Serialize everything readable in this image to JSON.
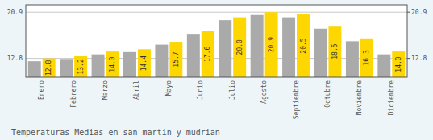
{
  "chart_data": {
    "type": "bar",
    "title": "Temperaturas Medias en san martin y mudrian",
    "categories": [
      "Enero",
      "Febrero",
      "Marzo",
      "Abril",
      "Mayo",
      "Junio",
      "Julio",
      "Agosto",
      "Septiembre",
      "Octubre",
      "Noviembre",
      "Diciembre"
    ],
    "series": [
      {
        "color": "#AAAAAA",
        "values": [
          12.3,
          12.7,
          13.5,
          13.9,
          15.2,
          17.1,
          19.5,
          20.4,
          20.0,
          18.0,
          15.8,
          13.5
        ]
      },
      {
        "color": "#FFD700",
        "values": [
          12.8,
          13.2,
          14.0,
          14.4,
          15.7,
          17.6,
          20.0,
          20.9,
          20.5,
          18.5,
          16.3,
          14.0
        ],
        "value_labels": [
          "12.8",
          "13.2",
          "14.0",
          "14.4",
          "15.7",
          "17.6",
          "20.0",
          "20.9",
          "20.5",
          "18.5",
          "16.3",
          "14.0"
        ],
        "data_labels": true
      }
    ],
    "ylim": [
      9.5,
      22.2
    ],
    "yticks": [
      12.8,
      20.9
    ],
    "y2lim": [
      9.5,
      22.2
    ],
    "y2ticks": [
      12.8,
      20.9
    ],
    "grid": true
  }
}
